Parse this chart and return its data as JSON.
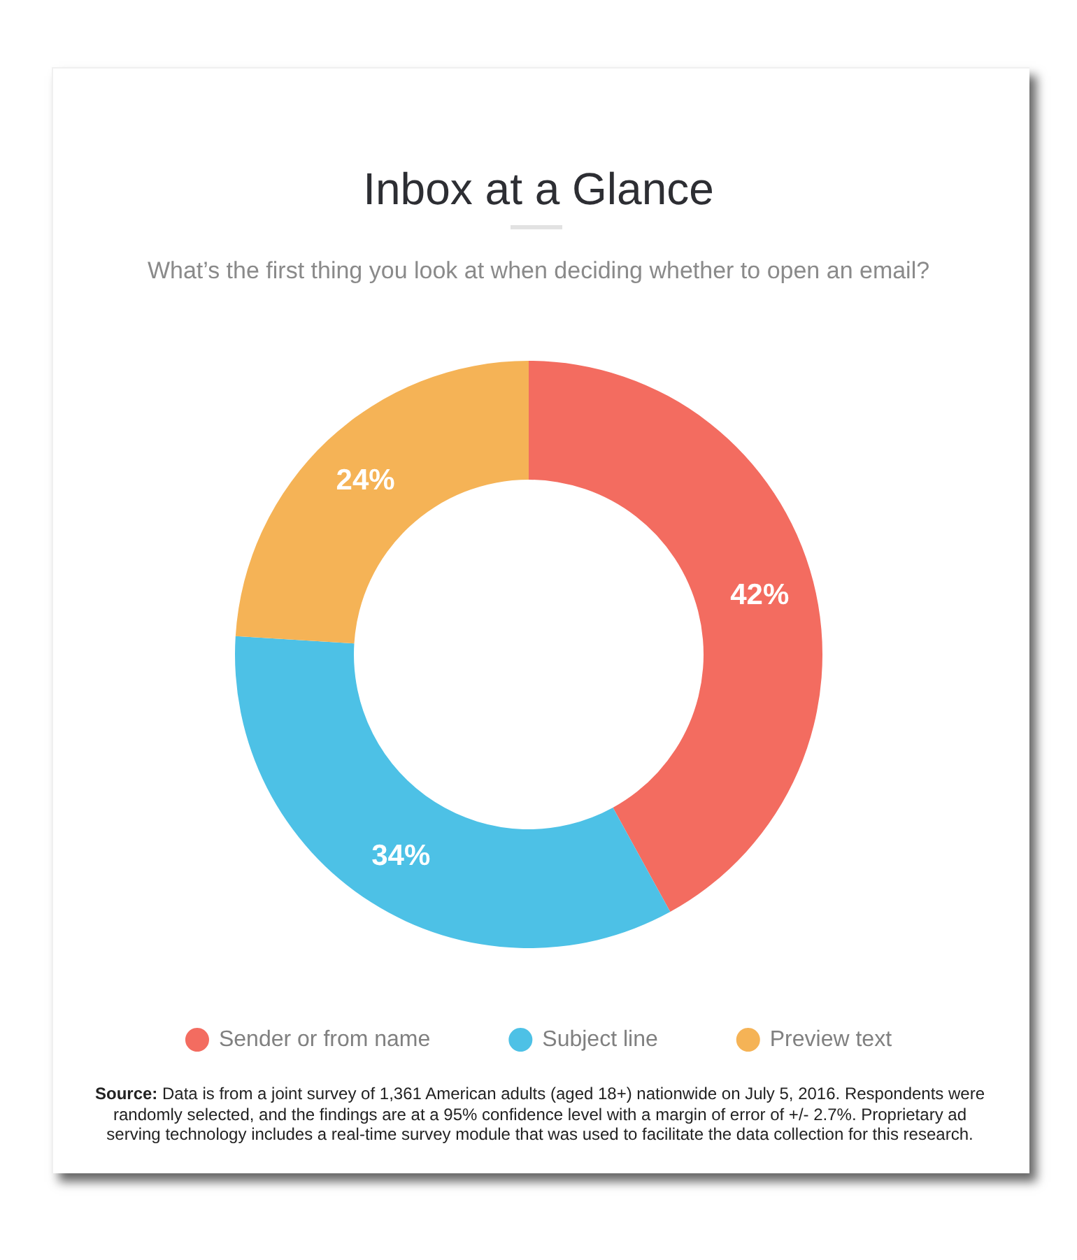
{
  "chart_data": {
    "type": "donut",
    "title": "Inbox at a Glance",
    "subtitle": "What’s the first thing you look at when deciding whether to open an email?",
    "categories": [
      "Sender or from name",
      "Subject line",
      "Preview text"
    ],
    "values": [
      42,
      34,
      24
    ],
    "colors": [
      "#f36c60",
      "#4dc1e6",
      "#f5b356"
    ],
    "value_labels": [
      "42%",
      "34%",
      "24%"
    ],
    "legend": "bottom",
    "annotations": [
      "Source: Data is from a joint survey of 1,361 American adults (aged 18+) nationwide on July 5, 2016. Respondents were randomly selected, and the findings are at a 95% confidence level with a margin of error of +/- 2.7%. Proprietary ad serving technology includes a real-time survey module that was used to facilitate the data collection for this research."
    ]
  }
}
